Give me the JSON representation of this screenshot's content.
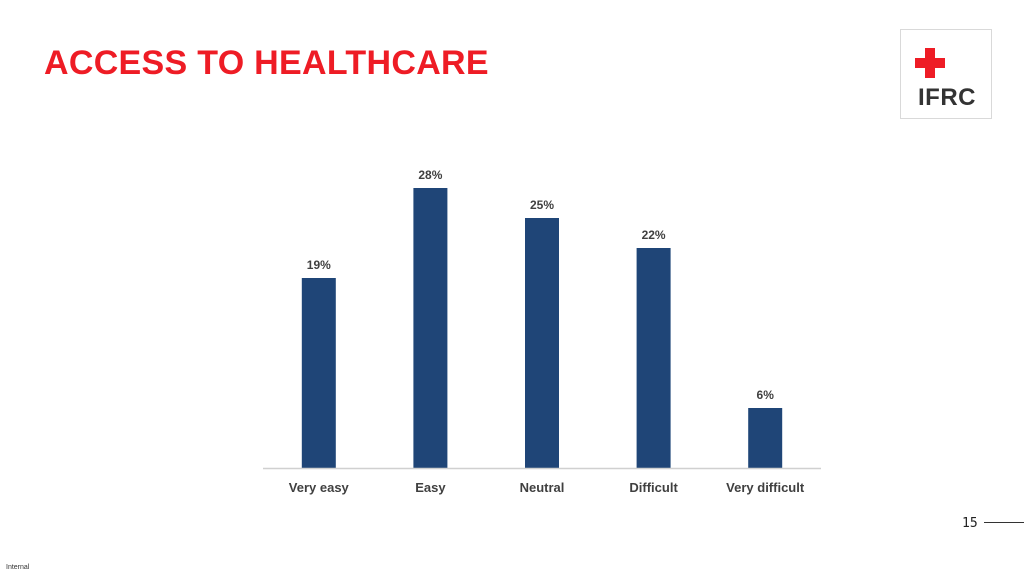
{
  "slide": {
    "title": "ACCESS TO HEALTHCARE",
    "page_number": "15",
    "footer_label": "Internal",
    "logo": {
      "text": "IFRC",
      "cross_color": "#ee1c25",
      "crescent_color": "#ee1c25",
      "icon": "red-cross-red-crescent-emblem"
    },
    "title_color": "#ee1c25"
  },
  "chart_data": {
    "type": "bar",
    "categories": [
      "Very easy",
      "Easy",
      "Neutral",
      "Difficult",
      "Very difficult"
    ],
    "values": [
      19,
      28,
      25,
      22,
      6
    ],
    "data_labels": [
      "19%",
      "28%",
      "25%",
      "22%",
      "6%"
    ],
    "ylim": [
      0,
      30
    ],
    "grid": false,
    "bar_color": "#1f4577",
    "axis_color": "#d0d0d0",
    "label_color": "#404040"
  }
}
